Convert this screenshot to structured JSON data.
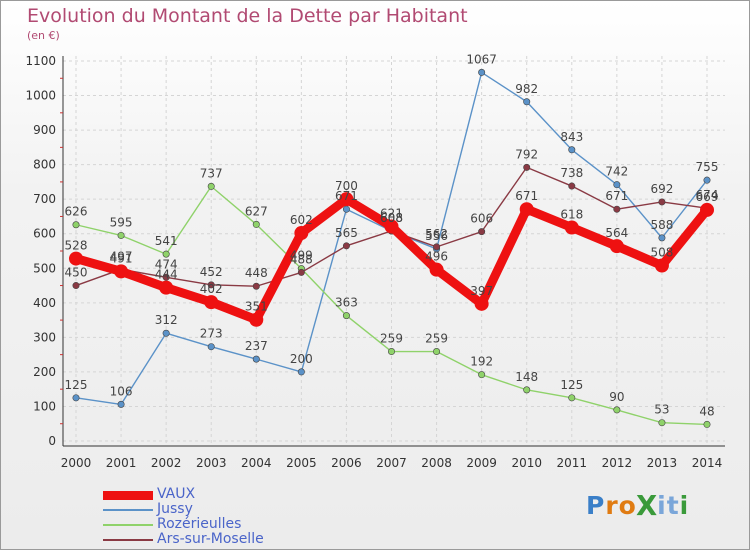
{
  "title": "Evolution du Montant de la Dette par Habitant",
  "unit": "(en €)",
  "logo": {
    "text": "ProXiti",
    "letters": [
      "P",
      "r",
      "o",
      "X",
      "i",
      "t",
      "i"
    ],
    "colors": [
      "#3a7fc8",
      "#e07b12",
      "#e07b12",
      "#3a9a3a",
      "#7aa6d9",
      "#7aa6d9",
      "#3a9a3a"
    ]
  },
  "chart_data": {
    "type": "line",
    "x": [
      "2000",
      "2001",
      "2002",
      "2003",
      "2004",
      "2005",
      "2006",
      "2007",
      "2008",
      "2009",
      "2010",
      "2011",
      "2012",
      "2013",
      "2014"
    ],
    "ylim": [
      0,
      1100
    ],
    "yticks": [
      0,
      100,
      200,
      300,
      400,
      500,
      600,
      700,
      800,
      900,
      1000,
      1100
    ],
    "grid": true,
    "legend_position": "bottom-left",
    "series": [
      {
        "name": "Jussy",
        "color": "#5b92c8",
        "values": [
          125,
          106,
          312,
          273,
          237,
          200,
          671,
          608,
          556,
          1067,
          982,
          843,
          742,
          588,
          755
        ]
      },
      {
        "name": "Rozérieulles",
        "color": "#8fd26a",
        "values": [
          626,
          595,
          541,
          737,
          627,
          499,
          363,
          259,
          259,
          192,
          148,
          125,
          90,
          53,
          48
        ]
      },
      {
        "name": "Ars-sur-Moselle",
        "color": "#8a3a44",
        "values": [
          450,
          497,
          474,
          452,
          448,
          488,
          565,
          608,
          562,
          606,
          792,
          738,
          671,
          692,
          674
        ]
      },
      {
        "name": "VAUX",
        "color": "#ee1111",
        "values": [
          528,
          491,
          444,
          402,
          351,
          602,
          700,
          621,
          496,
          397,
          671,
          618,
          564,
          508,
          669
        ]
      }
    ],
    "legend_order": [
      "VAUX",
      "Jussy",
      "Rozérieulles",
      "Ars-sur-Moselle"
    ]
  }
}
